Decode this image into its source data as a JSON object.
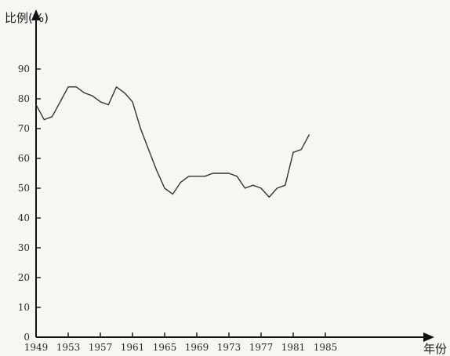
{
  "chart_data": {
    "type": "line",
    "title": "",
    "ylabel": "比例(%)",
    "xlabel": "年份",
    "ylim": [
      0,
      100
    ],
    "xlim": [
      1949,
      1987
    ],
    "y_ticks": [
      0,
      10,
      20,
      30,
      40,
      50,
      60,
      70,
      80,
      90
    ],
    "x_ticks": [
      1949,
      1953,
      1957,
      1961,
      1965,
      1969,
      1973,
      1977,
      1981,
      1985
    ],
    "x_tick_labels": [
      "1949",
      "1953",
      "1957",
      "1961",
      "1965",
      "1969",
      "1973",
      "1977",
      "1981",
      "1985"
    ],
    "grid": false,
    "legend": "none",
    "line_color": "#333333",
    "series": [
      {
        "x": [
          1949,
          1950,
          1951,
          1952,
          1953,
          1954,
          1955,
          1956,
          1957,
          1958,
          1959,
          1960,
          1961,
          1962,
          1963,
          1964,
          1965,
          1966,
          1967,
          1968,
          1969,
          1970,
          1971,
          1972,
          1973,
          1974,
          1975,
          1976,
          1977,
          1978,
          1979,
          1980,
          1981,
          1982,
          1983
        ],
        "y": [
          78,
          73,
          74,
          79,
          84,
          84,
          82,
          81,
          79,
          78,
          84,
          82,
          79,
          70,
          63,
          56,
          50,
          48,
          52,
          54,
          54,
          54,
          55,
          55,
          55,
          54,
          50,
          51,
          50,
          47,
          50,
          51,
          62,
          63,
          68
        ]
      }
    ]
  }
}
